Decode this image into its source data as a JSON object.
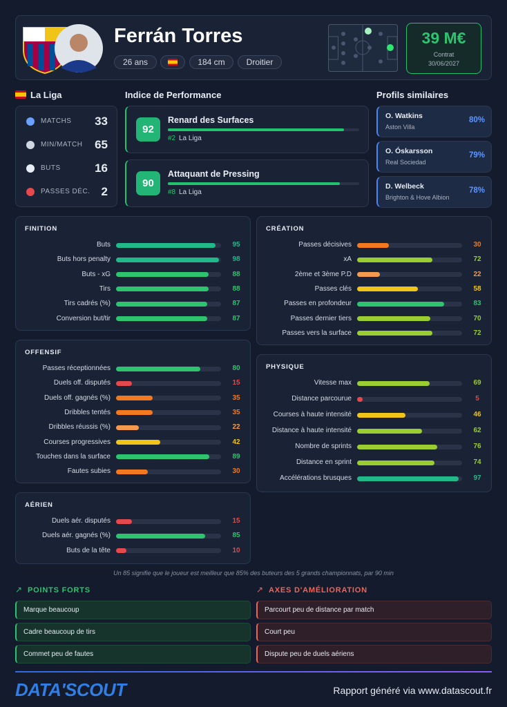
{
  "header": {
    "name": "Ferrán Torres",
    "tags": [
      "26 ans",
      "184 cm",
      "Droitier"
    ],
    "value": "39 M€",
    "contract_label": "Contrat",
    "contract_date": "30/06/2027"
  },
  "league": {
    "name": "La Liga",
    "stats": [
      {
        "label": "MATCHS",
        "value": 33
      },
      {
        "label": "MIN/MATCH",
        "value": 65
      },
      {
        "label": "BUTS",
        "value": 16
      },
      {
        "label": "PASSES DÉC.",
        "value": 2
      }
    ]
  },
  "performance": {
    "title": "Indice de Performance",
    "items": [
      {
        "score": 92,
        "name": "Renard des Surfaces",
        "rank": "#2",
        "league": "La Liga"
      },
      {
        "score": 90,
        "name": "Attaquant de Pressing",
        "rank": "#8",
        "league": "La Liga"
      }
    ]
  },
  "similar": {
    "title": "Profils similaires",
    "items": [
      {
        "name": "O. Watkins",
        "club": "Aston Villa",
        "match": "80%"
      },
      {
        "name": "O. Óskarsson",
        "club": "Real Sociedad",
        "match": "79%"
      },
      {
        "name": "D. Welbeck",
        "club": "Brighton & Hove Albion",
        "match": "78%"
      }
    ]
  },
  "sections": [
    {
      "title": "FINITION",
      "metrics": [
        {
          "label": "Buts",
          "value": 95
        },
        {
          "label": "Buts hors penalty",
          "value": 98
        },
        {
          "label": "Buts - xG",
          "value": 88
        },
        {
          "label": "Tirs",
          "value": 88
        },
        {
          "label": "Tirs cadrés (%)",
          "value": 87
        },
        {
          "label": "Conversion but/tir",
          "value": 87
        }
      ]
    },
    {
      "title": "OFFENSIF",
      "metrics": [
        {
          "label": "Passes réceptionnées",
          "value": 80
        },
        {
          "label": "Duels off. disputés",
          "value": 15
        },
        {
          "label": "Duels off. gagnés (%)",
          "value": 35
        },
        {
          "label": "Dribbles tentés",
          "value": 35
        },
        {
          "label": "Dribbles réussis (%)",
          "value": 22
        },
        {
          "label": "Courses progressives",
          "value": 42
        },
        {
          "label": "Touches dans la surface",
          "value": 89
        },
        {
          "label": "Fautes subies",
          "value": 30
        }
      ]
    },
    {
      "title": "AÉRIEN",
      "metrics": [
        {
          "label": "Duels aér. disputés",
          "value": 15
        },
        {
          "label": "Duels aér. gagnés (%)",
          "value": 85
        },
        {
          "label": "Buts de la tête",
          "value": 10
        }
      ]
    },
    {
      "title": "CRÉATION",
      "metrics": [
        {
          "label": "Passes décisives",
          "value": 30
        },
        {
          "label": "xA",
          "value": 72
        },
        {
          "label": "2ème et 3ème P.D",
          "value": 22
        },
        {
          "label": "Passes clés",
          "value": 58
        },
        {
          "label": "Passes en profondeur",
          "value": 83
        },
        {
          "label": "Passes dernier tiers",
          "value": 70
        },
        {
          "label": "Passes vers la surface",
          "value": 72
        }
      ]
    },
    {
      "title": "PHYSIQUE",
      "metrics": [
        {
          "label": "Vitesse max",
          "value": 69
        },
        {
          "label": "Distance parcourue",
          "value": 5
        },
        {
          "label": "Courses à haute intensité",
          "value": 46
        },
        {
          "label": "Distance à haute intensité",
          "value": 62
        },
        {
          "label": "Nombre de sprints",
          "value": 76
        },
        {
          "label": "Distance en sprint",
          "value": 74
        },
        {
          "label": "Accélérations brusques",
          "value": 97
        }
      ]
    }
  ],
  "bar_scale": [
    [
      0,
      "#e5484d"
    ],
    [
      20,
      "#f39a4e"
    ],
    [
      25,
      "#f2791f"
    ],
    [
      40,
      "#f0c419"
    ],
    [
      60,
      "#9acd32"
    ],
    [
      80,
      "#2ec36e"
    ],
    [
      95,
      "#22b98a"
    ]
  ],
  "footnote": "Un 85 signifie que le joueur est meilleur que 85% des buteurs des 5 grands championnats, par 90 min",
  "strengths": {
    "title": "POINTS FORTS",
    "items": [
      "Marque beaucoup",
      "Cadre beaucoup de tirs",
      "Commet peu de fautes"
    ]
  },
  "improvements": {
    "title": "AXES D'AMÉLIORATION",
    "items": [
      "Parcourt peu de distance par match",
      "Court peu",
      "Dispute peu de duels aériens"
    ]
  },
  "footer": {
    "logo": "DATA'SCOUT",
    "report": "Rapport généré via www.datascout.fr"
  }
}
